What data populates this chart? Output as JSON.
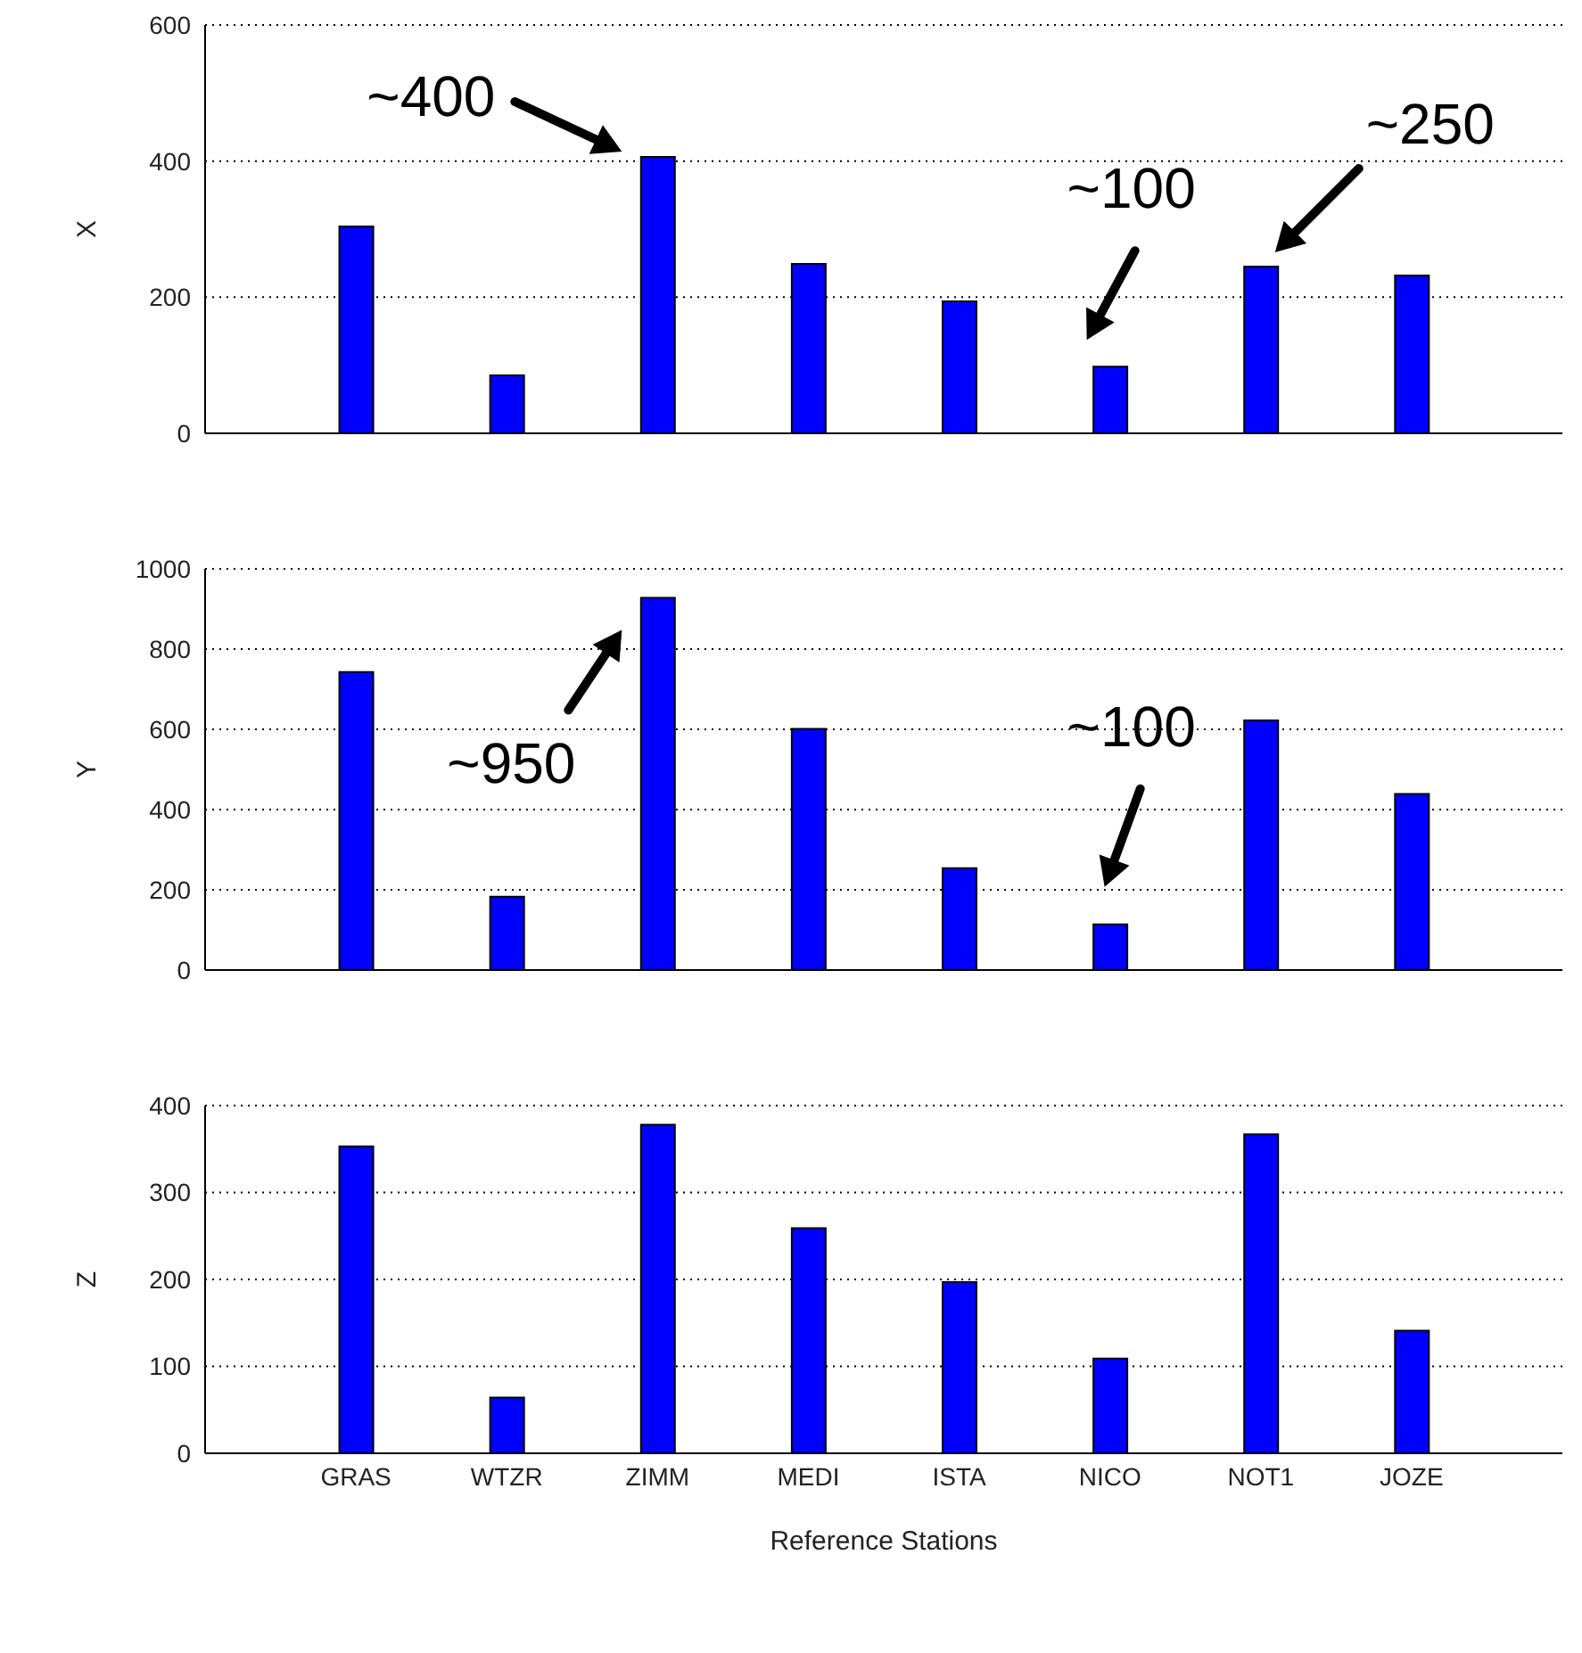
{
  "chart_data": [
    {
      "type": "bar",
      "categories": [
        "GRAS",
        "WTZR",
        "ZIMM",
        "MEDI",
        "ISTA",
        "NICO",
        "NOT1",
        "JOZE"
      ],
      "values": [
        304,
        85,
        406,
        249,
        194,
        98,
        245,
        232
      ],
      "color": "#0000ff",
      "ylabel": "X",
      "ylim": [
        0,
        600
      ],
      "yticks": [
        0,
        200,
        400,
        600
      ],
      "grid": "y",
      "tick_labels": "y",
      "annotations": [
        {
          "text": "~400",
          "x": "ZIMM",
          "y": 406
        },
        {
          "text": "~100",
          "x": "NICO",
          "y": 98
        },
        {
          "text": "~250",
          "x": "NOT1",
          "y": 245
        }
      ]
    },
    {
      "type": "bar",
      "categories": [
        "GRAS",
        "WTZR",
        "ZIMM",
        "MEDI",
        "ISTA",
        "NICO",
        "NOT1",
        "JOZE"
      ],
      "values": [
        743,
        183,
        928,
        601,
        254,
        114,
        622,
        439
      ],
      "color": "#0000ff",
      "ylabel": "Y",
      "ylim": [
        0,
        1000
      ],
      "yticks": [
        0,
        200,
        400,
        600,
        800,
        1000
      ],
      "grid": "y",
      "tick_labels": "y",
      "annotations": [
        {
          "text": "~950",
          "x": "ZIMM",
          "y": 928
        },
        {
          "text": "~100",
          "x": "NICO",
          "y": 114
        }
      ]
    },
    {
      "type": "bar",
      "categories": [
        "GRAS",
        "WTZR",
        "ZIMM",
        "MEDI",
        "ISTA",
        "NICO",
        "NOT1",
        "JOZE"
      ],
      "values": [
        353,
        64,
        378,
        259,
        197,
        109,
        367,
        141
      ],
      "color": "#0000ff",
      "ylabel": "Z",
      "xlabel": "Reference Stations",
      "ylim": [
        0,
        400
      ],
      "yticks": [
        0,
        100,
        200,
        300,
        400
      ],
      "grid": "y"
    }
  ]
}
